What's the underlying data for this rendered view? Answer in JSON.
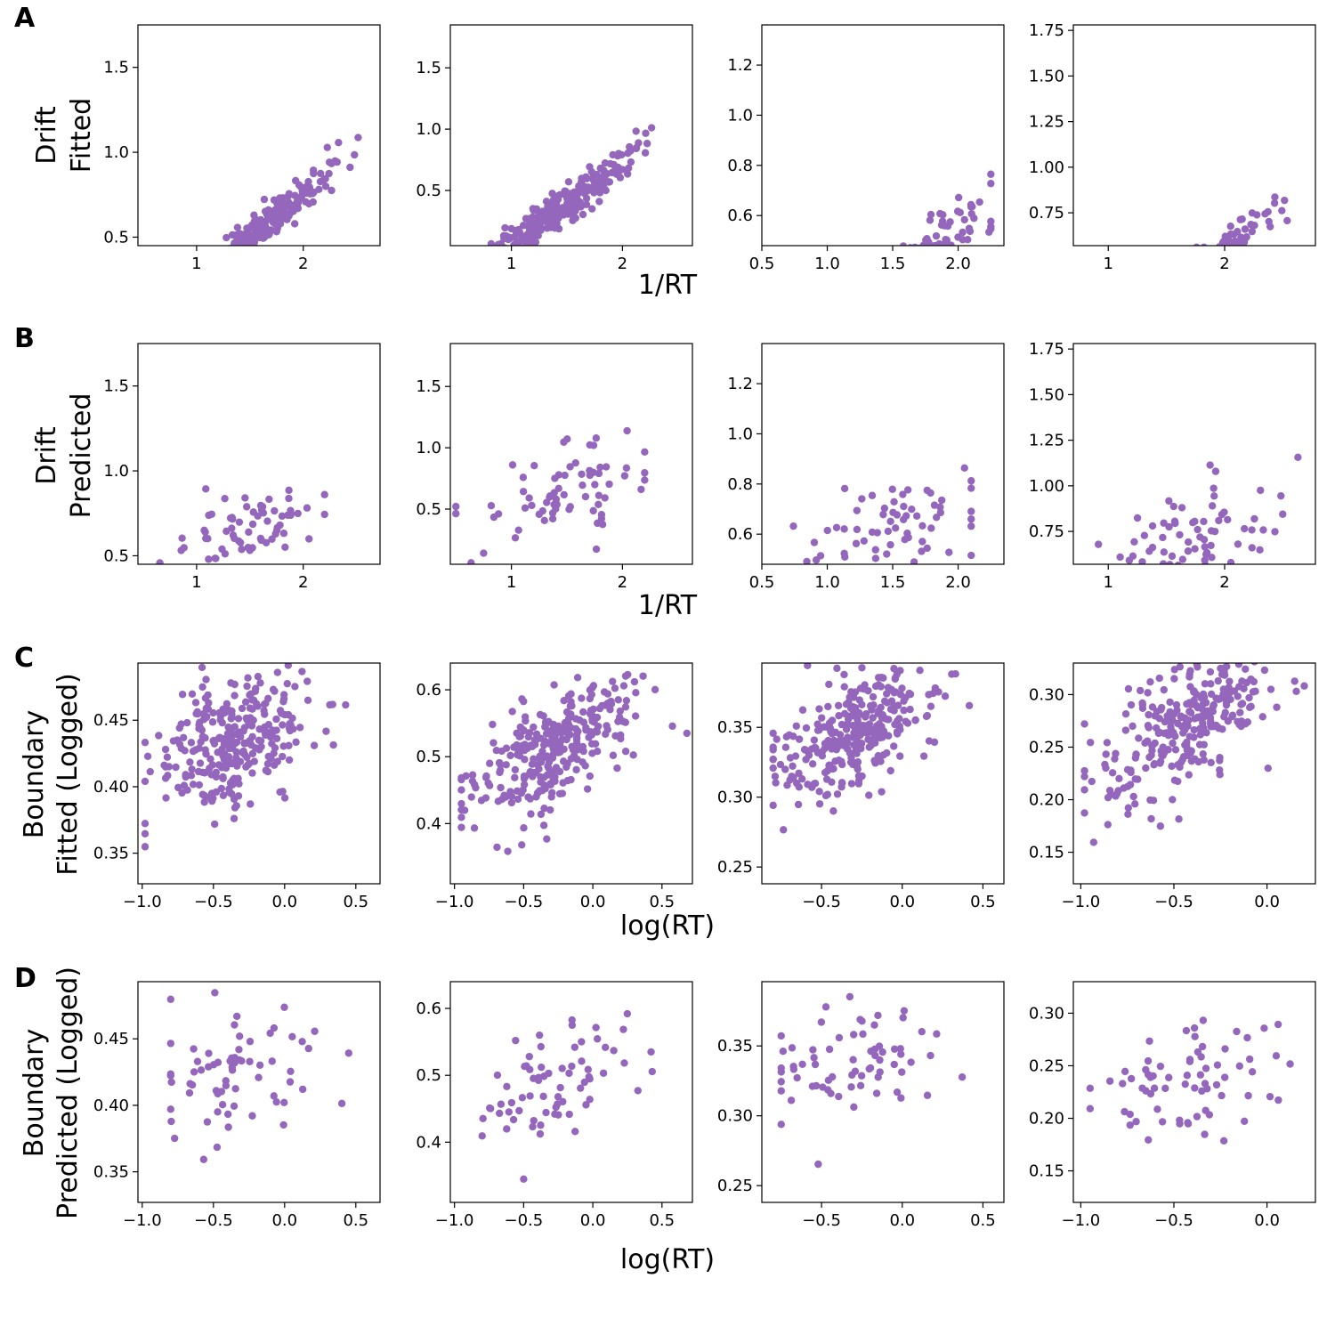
{
  "colors": {
    "point": "#9467bd",
    "axis": "#000000",
    "background": "#ffffff"
  },
  "rows": [
    {
      "letter": "A",
      "ylabel_lines": [
        "Drift",
        "Fitted"
      ],
      "xlabel": "1/RT"
    },
    {
      "letter": "B",
      "ylabel_lines": [
        "Drift",
        "Predicted"
      ],
      "xlabel": "1/RT"
    },
    {
      "letter": "C",
      "ylabel_lines": [
        "Boundary",
        "Fitted (Logged)"
      ],
      "xlabel": "log(RT)"
    },
    {
      "letter": "D",
      "ylabel_lines": [
        "Boundary",
        "Predicted (Logged)"
      ],
      "xlabel": "log(RT)"
    }
  ],
  "chart_data": [
    {
      "type": "scatter",
      "row": 0,
      "col": 0,
      "xlim": [
        0.45,
        2.72
      ],
      "ylim": [
        0.45,
        1.75
      ],
      "xticks": [
        1,
        2
      ],
      "xtick_labels": [
        "1",
        "2"
      ],
      "yticks": [
        0.5,
        1.0,
        1.5
      ],
      "ytick_labels": [
        "0.5",
        "1.0",
        "1.5"
      ],
      "gen": {
        "n": 300,
        "seed": 11,
        "xmin": 0.55,
        "xmax": 2.6,
        "center": 1.5,
        "sd": 0.35,
        "a": 0.5,
        "b": 0.49,
        "noise": 0.05
      }
    },
    {
      "type": "scatter",
      "row": 0,
      "col": 1,
      "xlim": [
        0.45,
        2.63
      ],
      "ylim": [
        0.05,
        1.85
      ],
      "xticks": [
        1,
        2
      ],
      "xtick_labels": [
        "1",
        "2"
      ],
      "yticks": [
        0.5,
        1.0,
        1.5
      ],
      "ytick_labels": [
        "0.5",
        "1.0",
        "1.5"
      ],
      "gen": {
        "n": 300,
        "seed": 12,
        "xmin": 0.5,
        "xmax": 2.55,
        "center": 1.4,
        "sd": 0.35,
        "a": 0.33,
        "b": 0.65,
        "noise": 0.07
      }
    },
    {
      "type": "scatter",
      "row": 0,
      "col": 2,
      "xlim": [
        0.5,
        2.35
      ],
      "ylim": [
        0.48,
        1.36
      ],
      "xticks": [
        0.5,
        1.0,
        1.5,
        2.0
      ],
      "xtick_labels": [
        "0.5",
        "1.0",
        "1.5",
        "2.0"
      ],
      "yticks": [
        0.6,
        0.8,
        1.0,
        1.2
      ],
      "ytick_labels": [
        "0.6",
        "0.8",
        "1.0",
        "1.2"
      ],
      "gen": {
        "n": 300,
        "seed": 13,
        "xmin": 0.55,
        "xmax": 2.25,
        "center": 1.45,
        "sd": 0.35,
        "a": 0.27,
        "b": 0.5,
        "noise": 0.07
      }
    },
    {
      "type": "scatter",
      "row": 0,
      "col": 3,
      "xlim": [
        0.7,
        2.78
      ],
      "ylim": [
        0.57,
        1.78
      ],
      "xticks": [
        1,
        2
      ],
      "xtick_labels": [
        "1",
        "2"
      ],
      "yticks": [
        0.75,
        1.0,
        1.25,
        1.5,
        1.75
      ],
      "ytick_labels": [
        "0.75",
        "1.00",
        "1.25",
        "1.50",
        "1.75"
      ],
      "gen": {
        "n": 300,
        "seed": 14,
        "xmin": 0.78,
        "xmax": 2.7,
        "center": 1.6,
        "sd": 0.38,
        "a": 0.33,
        "b": 0.53,
        "noise": 0.05
      }
    },
    {
      "type": "scatter",
      "row": 1,
      "col": 0,
      "xlim": [
        0.45,
        2.72
      ],
      "ylim": [
        0.45,
        1.75
      ],
      "xticks": [
        1,
        2
      ],
      "xtick_labels": [
        "1",
        "2"
      ],
      "yticks": [
        0.5,
        1.0,
        1.5
      ],
      "ytick_labels": [
        "0.5",
        "1.0",
        "1.5"
      ],
      "gen": {
        "n": 70,
        "seed": 21,
        "xmin": 0.65,
        "xmax": 2.2,
        "center": 1.45,
        "sd": 0.35,
        "a": 0.65,
        "b": 0.2,
        "noise": 0.12
      }
    },
    {
      "type": "scatter",
      "row": 1,
      "col": 1,
      "xlim": [
        0.45,
        2.63
      ],
      "ylim": [
        0.05,
        1.85
      ],
      "xticks": [
        1,
        2
      ],
      "xtick_labels": [
        "1",
        "2"
      ],
      "yticks": [
        0.5,
        1.0,
        1.5
      ],
      "ytick_labels": [
        "0.5",
        "1.0",
        "1.5"
      ],
      "gen": {
        "n": 70,
        "seed": 22,
        "xmin": 0.5,
        "xmax": 2.2,
        "center": 1.45,
        "sd": 0.38,
        "a": 0.68,
        "b": 0.3,
        "noise": 0.18
      }
    },
    {
      "type": "scatter",
      "row": 1,
      "col": 2,
      "xlim": [
        0.5,
        2.35
      ],
      "ylim": [
        0.48,
        1.36
      ],
      "xticks": [
        0.5,
        1.0,
        1.5,
        2.0
      ],
      "xtick_labels": [
        "0.5",
        "1.0",
        "1.5",
        "2.0"
      ],
      "yticks": [
        0.6,
        0.8,
        1.0,
        1.2
      ],
      "ytick_labels": [
        "0.6",
        "0.8",
        "1.0",
        "1.2"
      ],
      "gen": {
        "n": 70,
        "seed": 23,
        "xmin": 0.6,
        "xmax": 2.1,
        "center": 1.45,
        "sd": 0.38,
        "a": 0.6,
        "b": 0.2,
        "noise": 0.12
      }
    },
    {
      "type": "scatter",
      "row": 1,
      "col": 3,
      "xlim": [
        0.7,
        2.78
      ],
      "ylim": [
        0.57,
        1.78
      ],
      "xticks": [
        1,
        2
      ],
      "xtick_labels": [
        "1",
        "2"
      ],
      "yticks": [
        0.75,
        1.0,
        1.25,
        1.5,
        1.75
      ],
      "ytick_labels": [
        "0.75",
        "1.00",
        "1.25",
        "1.50",
        "1.75"
      ],
      "gen": {
        "n": 70,
        "seed": 24,
        "xmin": 0.8,
        "xmax": 2.65,
        "center": 1.7,
        "sd": 0.42,
        "a": 0.7,
        "b": 0.19,
        "noise": 0.12
      }
    },
    {
      "type": "scatter",
      "row": 2,
      "col": 0,
      "xlim": [
        -1.03,
        0.67
      ],
      "ylim": [
        0.327,
        0.493
      ],
      "xticks": [
        -1.0,
        -0.5,
        0.0,
        0.5
      ],
      "xtick_labels": [
        "−1.0",
        "−0.5",
        "0.0",
        "0.5"
      ],
      "yticks": [
        0.35,
        0.4,
        0.45
      ],
      "ytick_labels": [
        "0.35",
        "0.40",
        "0.45"
      ],
      "gen": {
        "n": 300,
        "seed": 31,
        "xmin": -0.98,
        "xmax": 0.62,
        "center": -0.35,
        "sd": 0.27,
        "a": 0.436,
        "b": 0.035,
        "noise": 0.025
      }
    },
    {
      "type": "scatter",
      "row": 2,
      "col": 1,
      "xlim": [
        -1.03,
        0.72
      ],
      "ylim": [
        0.31,
        0.64
      ],
      "xticks": [
        -1.0,
        -0.5,
        0.0,
        0.5
      ],
      "xtick_labels": [
        "−1.0",
        "−0.5",
        "0.0",
        "0.5"
      ],
      "yticks": [
        0.4,
        0.5,
        0.6
      ],
      "ytick_labels": [
        "0.4",
        "0.5",
        "0.6"
      ],
      "gen": {
        "n": 300,
        "seed": 32,
        "xmin": -0.95,
        "xmax": 0.68,
        "center": -0.3,
        "sd": 0.3,
        "a": 0.51,
        "b": 0.12,
        "noise": 0.04
      }
    },
    {
      "type": "scatter",
      "row": 2,
      "col": 2,
      "xlim": [
        -0.87,
        0.63
      ],
      "ylim": [
        0.238,
        0.396
      ],
      "xticks": [
        -0.5,
        0.0,
        0.5
      ],
      "xtick_labels": [
        "−0.5",
        "0.0",
        "0.5"
      ],
      "yticks": [
        0.25,
        0.3,
        0.35
      ],
      "ytick_labels": [
        "0.25",
        "0.30",
        "0.35"
      ],
      "gen": {
        "n": 300,
        "seed": 33,
        "xmin": -0.8,
        "xmax": 0.55,
        "center": -0.3,
        "sd": 0.25,
        "a": 0.345,
        "b": 0.05,
        "noise": 0.02
      }
    },
    {
      "type": "scatter",
      "row": 2,
      "col": 3,
      "xlim": [
        -1.04,
        0.26
      ],
      "ylim": [
        0.12,
        0.33
      ],
      "xticks": [
        -1.0,
        -0.5,
        0.0
      ],
      "xtick_labels": [
        "−1.0",
        "−0.5",
        "0.0"
      ],
      "yticks": [
        0.15,
        0.2,
        0.25,
        0.3
      ],
      "ytick_labels": [
        "0.15",
        "0.20",
        "0.25",
        "0.30"
      ],
      "gen": {
        "n": 300,
        "seed": 34,
        "xmin": -0.98,
        "xmax": 0.2,
        "center": -0.45,
        "sd": 0.25,
        "a": 0.27,
        "b": 0.1,
        "noise": 0.03
      }
    },
    {
      "type": "scatter",
      "row": 3,
      "col": 0,
      "xlim": [
        -1.03,
        0.67
      ],
      "ylim": [
        0.327,
        0.493
      ],
      "xticks": [
        -1.0,
        -0.5,
        0.0,
        0.5
      ],
      "xtick_labels": [
        "−1.0",
        "−0.5",
        "0.0",
        "0.5"
      ],
      "yticks": [
        0.35,
        0.4,
        0.45
      ],
      "ytick_labels": [
        "0.35",
        "0.40",
        "0.45"
      ],
      "gen": {
        "n": 70,
        "seed": 41,
        "xmin": -0.8,
        "xmax": 0.45,
        "center": -0.3,
        "sd": 0.3,
        "a": 0.425,
        "b": 0.035,
        "noise": 0.026
      }
    },
    {
      "type": "scatter",
      "row": 3,
      "col": 1,
      "xlim": [
        -1.03,
        0.72
      ],
      "ylim": [
        0.31,
        0.64
      ],
      "xticks": [
        -1.0,
        -0.5,
        0.0,
        0.5
      ],
      "xtick_labels": [
        "−1.0",
        "−0.5",
        "0.0",
        "0.5"
      ],
      "yticks": [
        0.4,
        0.5,
        0.6
      ],
      "ytick_labels": [
        "0.4",
        "0.5",
        "0.6"
      ],
      "gen": {
        "n": 70,
        "seed": 42,
        "xmin": -0.8,
        "xmax": 0.65,
        "center": -0.3,
        "sd": 0.3,
        "a": 0.49,
        "b": 0.07,
        "noise": 0.04
      }
    },
    {
      "type": "scatter",
      "row": 3,
      "col": 2,
      "xlim": [
        -0.87,
        0.63
      ],
      "ylim": [
        0.238,
        0.396
      ],
      "xticks": [
        -0.5,
        0.0,
        0.5
      ],
      "xtick_labels": [
        "−0.5",
        "0.0",
        "0.5"
      ],
      "yticks": [
        0.25,
        0.3,
        0.35
      ],
      "ytick_labels": [
        "0.25",
        "0.30",
        "0.35"
      ],
      "gen": {
        "n": 70,
        "seed": 43,
        "xmin": -0.75,
        "xmax": 0.5,
        "center": -0.3,
        "sd": 0.3,
        "a": 0.335,
        "b": 0.03,
        "noise": 0.022
      }
    },
    {
      "type": "scatter",
      "row": 3,
      "col": 3,
      "xlim": [
        -1.04,
        0.26
      ],
      "ylim": [
        0.12,
        0.33
      ],
      "xticks": [
        -1.0,
        -0.5,
        0.0
      ],
      "xtick_labels": [
        "−1.0",
        "−0.5",
        "0.0"
      ],
      "yticks": [
        0.15,
        0.2,
        0.25,
        0.3
      ],
      "ytick_labels": [
        "0.15",
        "0.20",
        "0.25",
        "0.30"
      ],
      "gen": {
        "n": 70,
        "seed": 44,
        "xmin": -0.95,
        "xmax": 0.2,
        "center": -0.45,
        "sd": 0.3,
        "a": 0.235,
        "b": 0.025,
        "noise": 0.03
      }
    }
  ]
}
